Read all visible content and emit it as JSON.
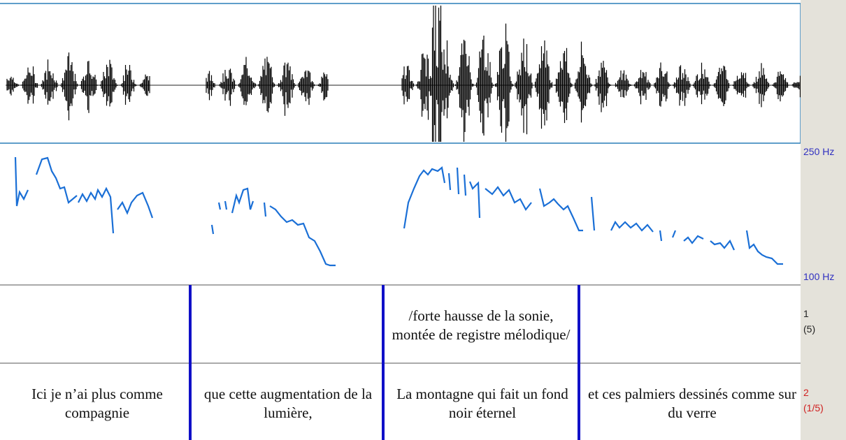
{
  "pitch_axis": {
    "top": "250 Hz",
    "bottom": "100 Hz"
  },
  "tiers": [
    {
      "number": "1",
      "count": "(5)",
      "intervals": [
        "/forte hausse de la sonie, montée de registre mélodique/"
      ]
    },
    {
      "number": "2",
      "count": "(1/5)",
      "intervals": [
        "Ici je n’ai plus comme compagnie",
        "que cette augmentation de la lumière,",
        "La montagne qui fait un fond noir éternel",
        "et ces palmiers dessinés comme sur du verre"
      ]
    }
  ]
}
